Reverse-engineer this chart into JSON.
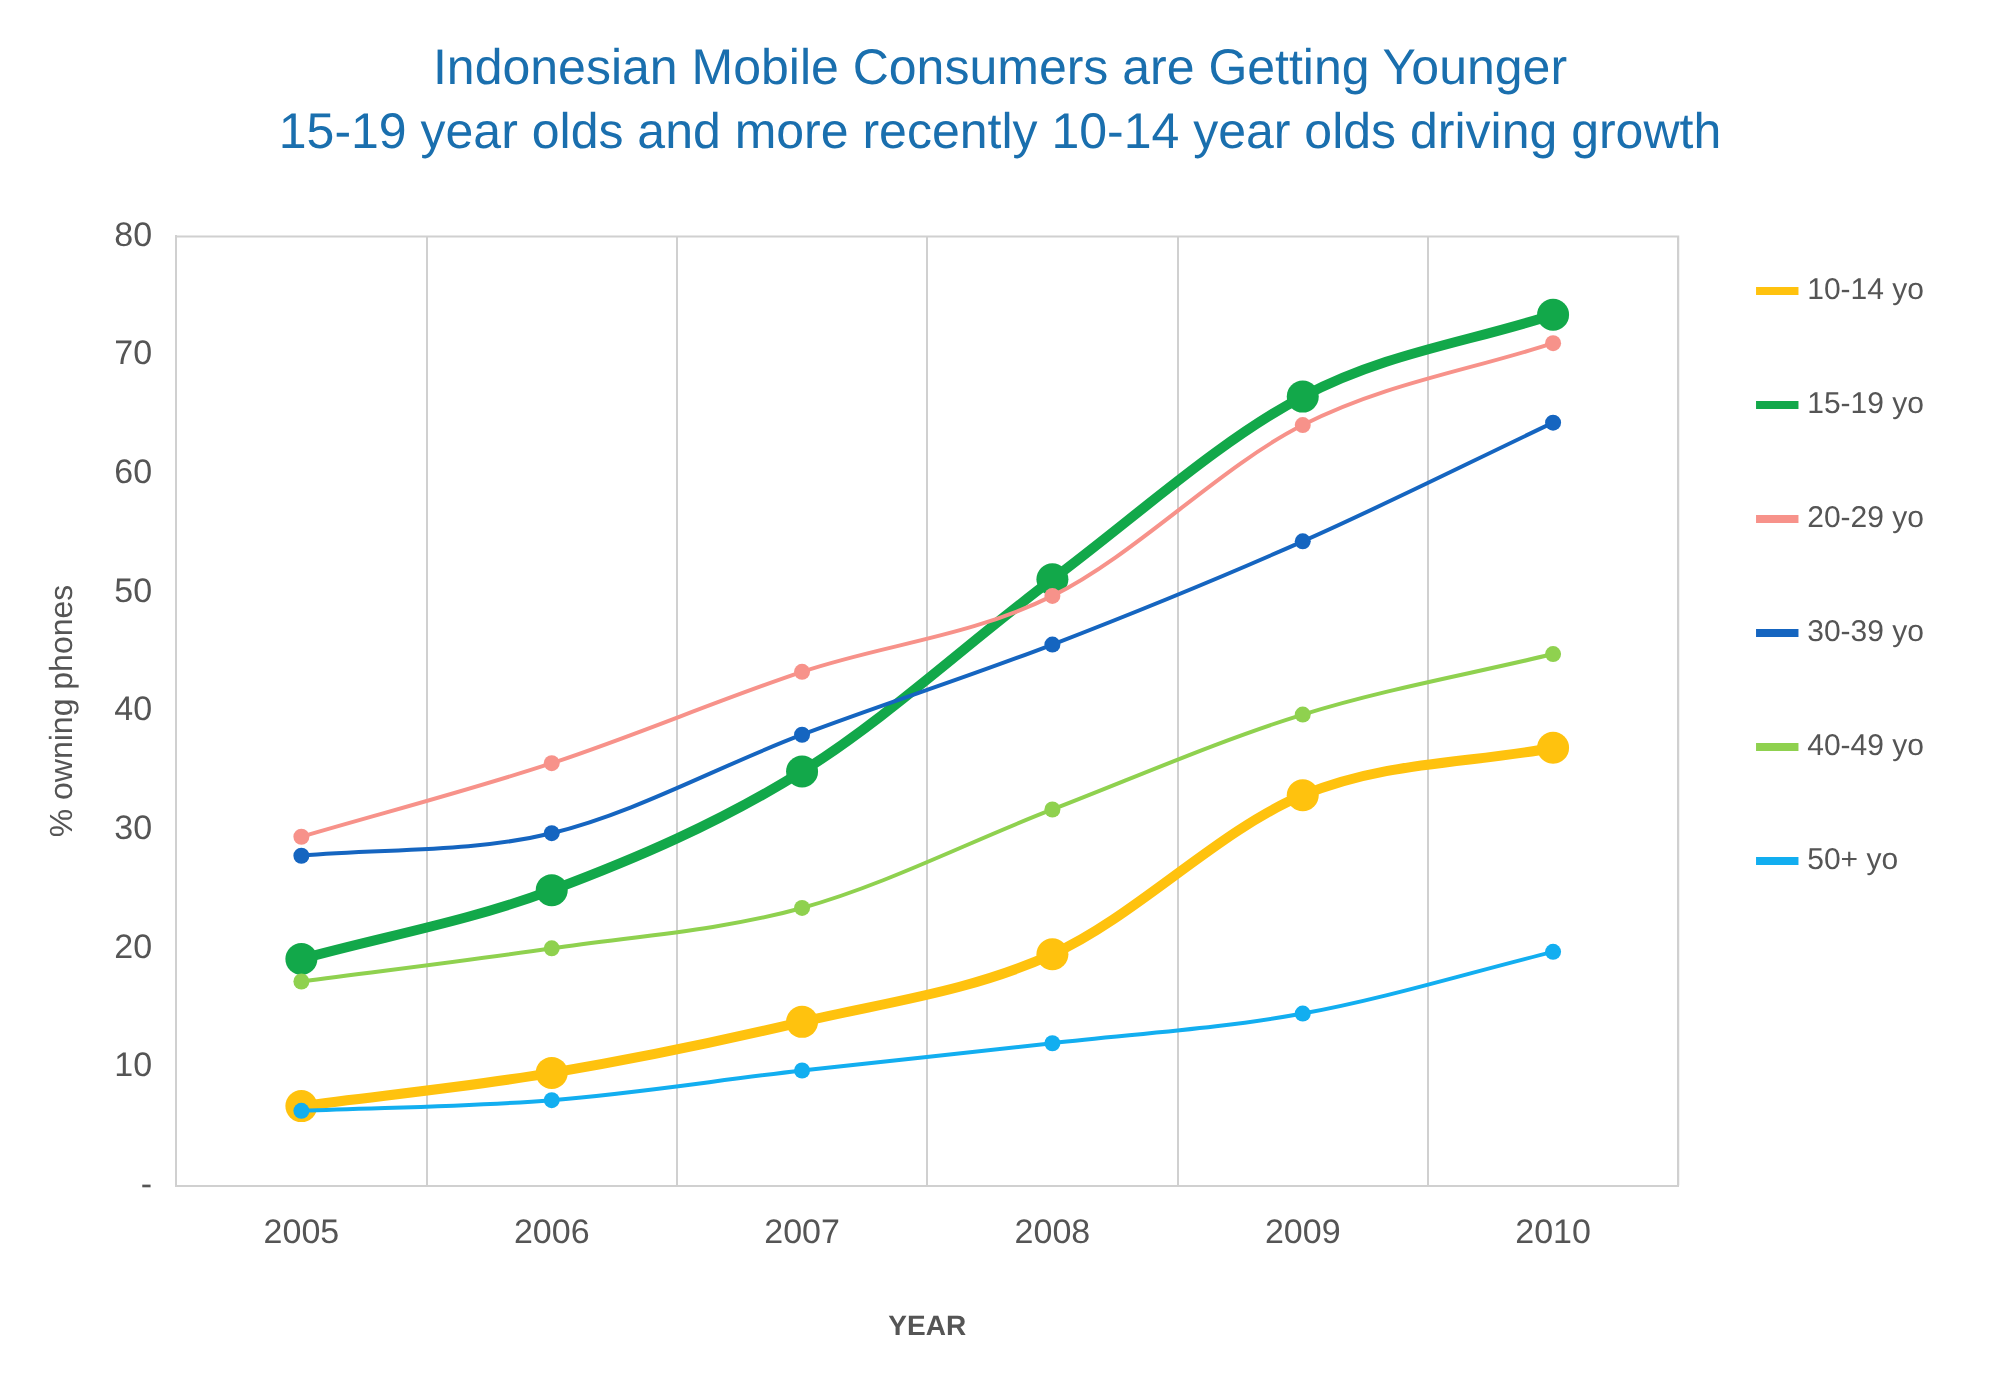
{
  "chart_data": {
    "type": "line",
    "title": [
      "Indonesian Mobile Consumers are Getting Younger",
      "15-19 year olds and more recently 10-14 year olds driving growth"
    ],
    "xlabel": "YEAR",
    "ylabel": "% owning phones",
    "categories": [
      "2005",
      "2006",
      "2007",
      "2008",
      "2009",
      "2010"
    ],
    "series": [
      {
        "name": "10-14 yo",
        "color": "#ffc20e",
        "values": [
          6.7,
          9.5,
          13.8,
          19.5,
          32.9,
          36.9
        ]
      },
      {
        "name": "15-19 yo",
        "color": "#12a84a",
        "values": [
          19.1,
          24.9,
          34.9,
          51.1,
          66.5,
          73.4
        ]
      },
      {
        "name": "20-29 yo",
        "color": "#f7928a",
        "values": [
          29.4,
          35.6,
          43.3,
          49.7,
          64.1,
          71
        ]
      },
      {
        "name": "30-39 yo",
        "color": "#1565c0",
        "values": [
          27.8,
          29.7,
          38,
          45.6,
          54.3,
          64.3
        ]
      },
      {
        "name": "40-49 yo",
        "color": "#8fd14f",
        "values": [
          17.2,
          20,
          23.4,
          31.7,
          39.7,
          44.8
        ]
      },
      {
        "name": "50+ yo",
        "color": "#12aef0",
        "values": [
          6.3,
          7.2,
          9.7,
          12,
          14.5,
          19.7
        ]
      }
    ],
    "ylim": [
      0,
      80
    ],
    "yticks": [
      {
        "value": 0,
        "label": "-"
      },
      10,
      20,
      30,
      40,
      50,
      60,
      70,
      80
    ],
    "grid": "x",
    "legend": "right",
    "marker": "circle"
  }
}
